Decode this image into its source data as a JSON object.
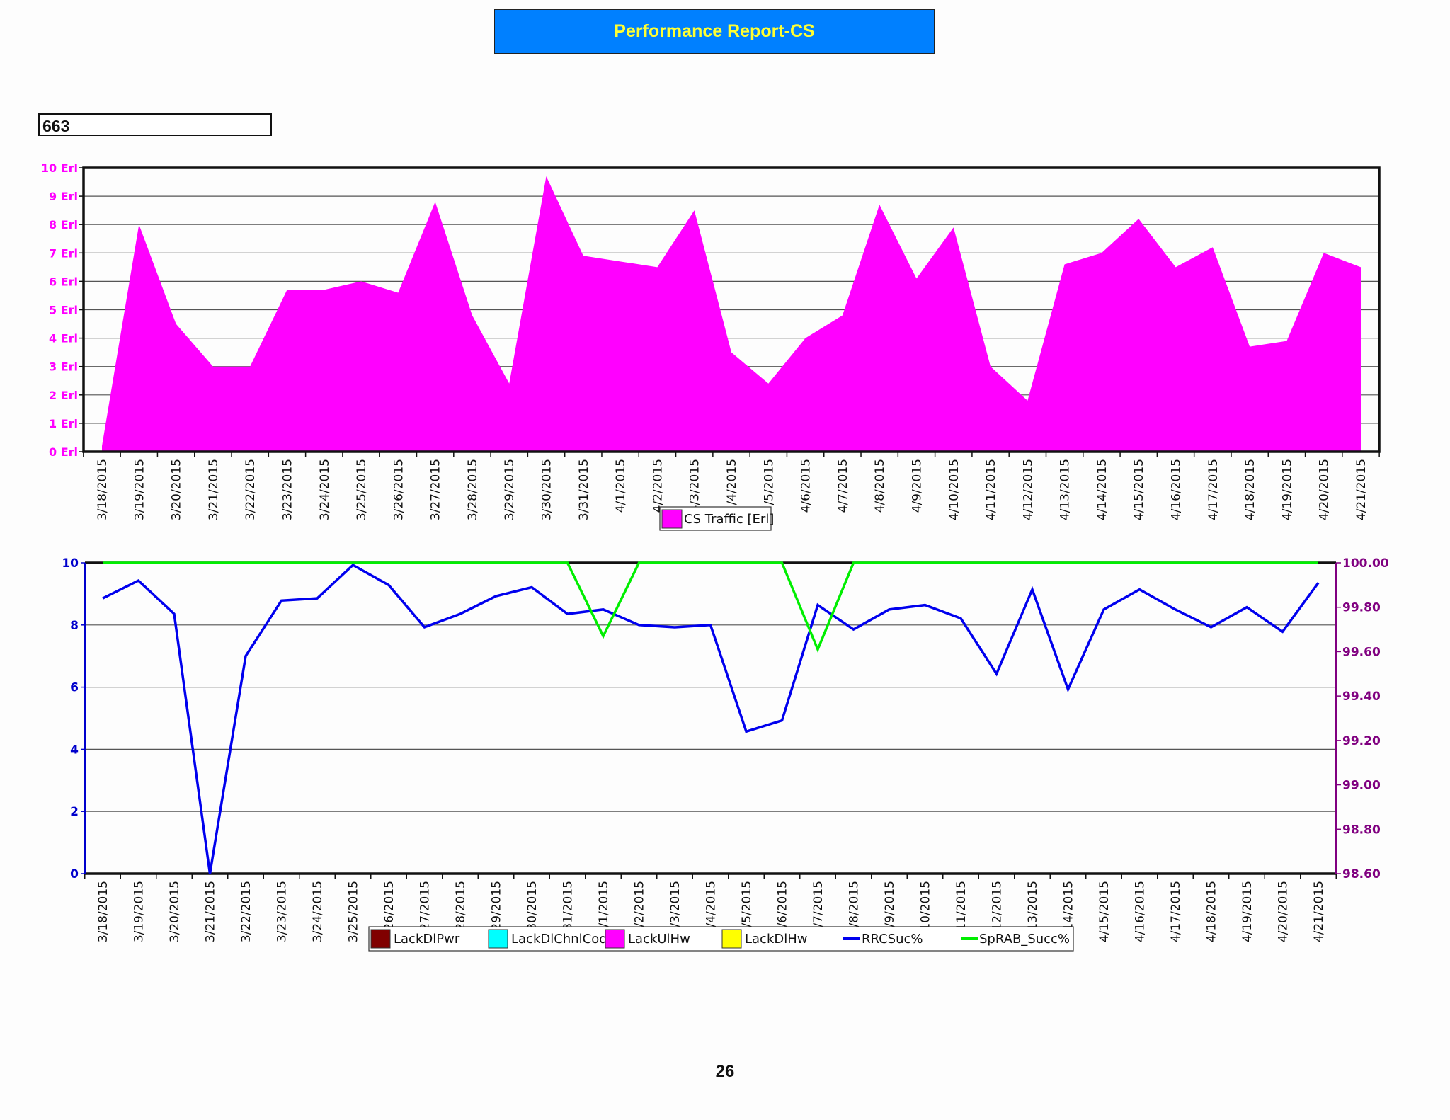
{
  "report": {
    "title": "Performance Report-CS",
    "site_id": "663",
    "page_number": "26"
  },
  "colors": {
    "title_bg": "#0080ff",
    "title_text": "#ffff33",
    "traffic_fill": "#ff00ff",
    "rrc_line": "#0000ee",
    "sprab_line": "#00ee00",
    "left_axis_2": "#0000cc",
    "right_axis_2": "#800080"
  },
  "chart_data": [
    {
      "type": "area",
      "dates": [
        "3/18/2015",
        "3/19/2015",
        "3/20/2015",
        "3/21/2015",
        "3/22/2015",
        "3/23/2015",
        "3/24/2015",
        "3/25/2015",
        "3/26/2015",
        "3/27/2015",
        "3/28/2015",
        "3/29/2015",
        "3/30/2015",
        "3/31/2015",
        "4/1/2015",
        "4/2/2015",
        "4/3/2015",
        "4/4/2015",
        "4/5/2015",
        "4/6/2015",
        "4/7/2015",
        "4/8/2015",
        "4/9/2015",
        "4/10/2015",
        "4/11/2015",
        "4/12/2015",
        "4/13/2015",
        "4/14/2015",
        "4/15/2015",
        "4/16/2015",
        "4/17/2015",
        "4/18/2015",
        "4/19/2015",
        "4/20/2015",
        "4/21/2015"
      ],
      "tick_labels": [
        "3/18/2015",
        "3/19/2015",
        "3/20/2015",
        "3/21/2015",
        "3/22/2015",
        "3/23/2015",
        "3/24/2015",
        "3/25/2015",
        "3/26/2015",
        "3/27/2015",
        "3/28/2015",
        "3/29/2015",
        "3/30/2015",
        "3/31/2015",
        "4/1/2015",
        "4/2/2015",
        "4/3/2015",
        "/4/2015",
        "/5/2015",
        "4/6/2015",
        "4/7/2015",
        "4/8/2015",
        "4/9/2015",
        "4/10/2015",
        "4/11/2015",
        "4/12/2015",
        "4/13/2015",
        "4/14/2015",
        "4/15/2015",
        "4/16/2015",
        "4/17/2015",
        "4/18/2015",
        "4/19/2015",
        "4/20/2015",
        "4/21/2015"
      ],
      "series": [
        {
          "name": "CS Traffic [Erl]",
          "color": "#ff00ff",
          "values": [
            0.2,
            8.0,
            4.5,
            3.0,
            3.0,
            5.7,
            5.7,
            6.0,
            5.6,
            8.8,
            4.8,
            2.4,
            9.7,
            6.9,
            6.7,
            6.5,
            8.5,
            3.5,
            2.4,
            4.0,
            4.8,
            8.7,
            6.1,
            7.9,
            3.0,
            1.8,
            6.6,
            7.0,
            8.2,
            6.5,
            7.2,
            3.7,
            3.9,
            7.0,
            6.5
          ]
        }
      ],
      "y_ticks": [
        "0 Erl",
        "1 Erl",
        "2 Erl",
        "3 Erl",
        "4 Erl",
        "5 Erl",
        "6 Erl",
        "7 Erl",
        "8 Erl",
        "9 Erl",
        "10 Erl"
      ],
      "ylim": [
        0,
        10
      ],
      "grid": true,
      "legend": "bottom-center"
    },
    {
      "type": "line",
      "dates": [
        "3/18/2015",
        "3/19/2015",
        "3/20/2015",
        "3/21/2015",
        "3/22/2015",
        "3/23/2015",
        "3/24/2015",
        "3/25/2015",
        "3/26/2015",
        "3/27/2015",
        "3/28/2015",
        "3/29/2015",
        "3/30/2015",
        "3/31/2015",
        "4/1/2015",
        "4/2/2015",
        "4/3/2015",
        "4/4/2015",
        "4/5/2015",
        "4/6/2015",
        "4/7/2015",
        "4/8/2015",
        "4/9/2015",
        "4/10/2015",
        "4/11/2015",
        "4/12/2015",
        "4/13/2015",
        "4/14/2015",
        "4/15/2015",
        "4/16/2015",
        "4/17/2015",
        "4/18/2015",
        "4/19/2015",
        "4/20/2015",
        "4/21/2015"
      ],
      "tick_labels": [
        "3/18/2015",
        "3/19/2015",
        "3/20/2015",
        "3/21/2015",
        "3/22/2015",
        "3/23/2015",
        "3/24/2015",
        "3/25/2015",
        "26/2015",
        "27/2015",
        "28/2015",
        "29/2015",
        "30/2015",
        "31/2015",
        "/1/2015",
        "/2/2015",
        "/3/2015",
        "/4/2015",
        "/5/2015",
        "/6/2015",
        "/7/2015",
        "/8/2015",
        "/9/2015",
        "10/2015",
        "11/2015",
        "12/2015",
        "13/2015",
        "14/2015",
        "4/15/2015",
        "4/16/2015",
        "4/17/2015",
        "4/18/2015",
        "4/19/2015",
        "4/20/2015",
        "4/21/2015"
      ],
      "left_y_ticks": [
        "0",
        "2",
        "4",
        "6",
        "8",
        "10"
      ],
      "left_ylim": [
        0,
        10
      ],
      "right_y_ticks": [
        "98.60",
        "98.80",
        "99.00",
        "99.20",
        "99.40",
        "99.60",
        "99.80",
        "100.00"
      ],
      "right_ylim": [
        98.6,
        100.0
      ],
      "series": [
        {
          "name": "LackDlPwr",
          "color": "#800000",
          "marker": "box"
        },
        {
          "name": "LackDlChnlCode",
          "color": "#00ffff",
          "marker": "box"
        },
        {
          "name": "LackUlHw",
          "color": "#ff00ff",
          "marker": "box"
        },
        {
          "name": "LackDlHw",
          "color": "#ffff00",
          "marker": "box"
        },
        {
          "name": "RRCSuc%",
          "color": "#0000ee",
          "marker": "line",
          "axis": "right",
          "values": [
            99.84,
            99.92,
            99.77,
            98.6,
            99.58,
            99.83,
            99.84,
            99.99,
            99.9,
            99.71,
            99.77,
            99.85,
            99.89,
            99.77,
            99.79,
            99.72,
            99.71,
            99.72,
            99.24,
            99.29,
            99.81,
            99.7,
            99.79,
            99.81,
            99.75,
            99.5,
            99.88,
            99.43,
            99.79,
            99.88,
            99.79,
            99.71,
            99.8,
            99.69,
            99.91
          ]
        },
        {
          "name": "SpRAB_Succ%",
          "color": "#00ee00",
          "marker": "line",
          "axis": "right",
          "values": [
            100,
            100,
            100,
            100,
            100,
            100,
            100,
            100,
            100,
            100,
            100,
            100,
            100,
            100,
            99.67,
            100,
            100,
            100,
            100,
            100,
            99.61,
            100,
            100,
            100,
            100,
            100,
            100,
            100,
            100,
            100,
            100,
            100,
            100,
            100,
            100
          ]
        }
      ],
      "grid": true,
      "legend": "bottom-center"
    }
  ]
}
